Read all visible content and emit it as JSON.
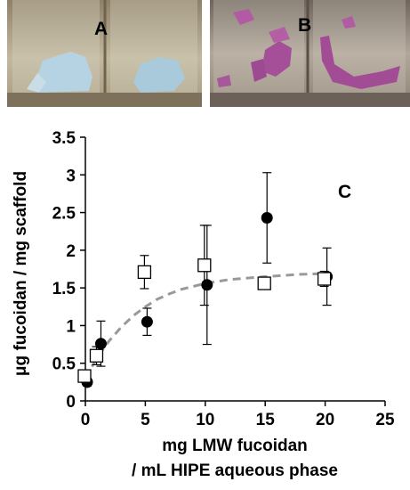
{
  "panels": {
    "a_label": "A",
    "b_label": "B",
    "c_label": "C"
  },
  "colors": {
    "photo_a_bg": "#b7ab8f",
    "photo_a_scaffold": "#a9c8d8",
    "photo_b_bg": "#9a8e82",
    "photo_b_scaffold": "#a8509a",
    "fit_line": "#999999"
  },
  "chart_data": {
    "type": "scatter",
    "xlabel_lines": [
      "mg LMW fucoidan",
      "/ mL HIPE aqueous phase"
    ],
    "ylabel": "μg fucoidan / mg scaffold",
    "xlim": [
      0,
      25
    ],
    "ylim": [
      0,
      3.5
    ],
    "x_ticks": [
      0,
      5,
      10,
      15,
      20,
      25
    ],
    "y_ticks": [
      0,
      0.5,
      1,
      1.5,
      2,
      2.5,
      3,
      3.5
    ],
    "y_tick_labels": [
      "0",
      "0.5",
      "1",
      "1.5",
      "2",
      "2.5",
      "3",
      "3.5"
    ],
    "grid": false,
    "series": [
      {
        "marker": "filled-circle",
        "points": [
          {
            "x": 0,
            "y": 0.25,
            "err": 0.05
          },
          {
            "x": 1,
            "y": 0.76,
            "err": 0.3
          },
          {
            "x": 5,
            "y": 1.05,
            "err": 0.18
          },
          {
            "x": 10,
            "y": 1.54,
            "err": 0.79
          },
          {
            "x": 15,
            "y": 2.43,
            "err": 0.6
          },
          {
            "x": 20,
            "y": 1.65,
            "err": 0.38
          }
        ]
      },
      {
        "marker": "open-square",
        "points": [
          {
            "x": 0,
            "y": 0.33,
            "err": 0.06
          },
          {
            "x": 1,
            "y": 0.6,
            "err": 0.12
          },
          {
            "x": 5,
            "y": 1.71,
            "err": 0.22
          },
          {
            "x": 10,
            "y": 1.8,
            "err": 0.53
          },
          {
            "x": 15,
            "y": 1.56,
            "err": 0.06
          },
          {
            "x": 20,
            "y": 1.62,
            "err": 0.1
          }
        ]
      }
    ],
    "fit_curve": {
      "style": "dashed",
      "points": [
        [
          0,
          0.3
        ],
        [
          1,
          0.58
        ],
        [
          2,
          0.8
        ],
        [
          3,
          0.98
        ],
        [
          4,
          1.13
        ],
        [
          5,
          1.25
        ],
        [
          6,
          1.35
        ],
        [
          7,
          1.42
        ],
        [
          8,
          1.48
        ],
        [
          10,
          1.56
        ],
        [
          12,
          1.61
        ],
        [
          15,
          1.65
        ],
        [
          18,
          1.68
        ],
        [
          20,
          1.69
        ]
      ]
    }
  }
}
